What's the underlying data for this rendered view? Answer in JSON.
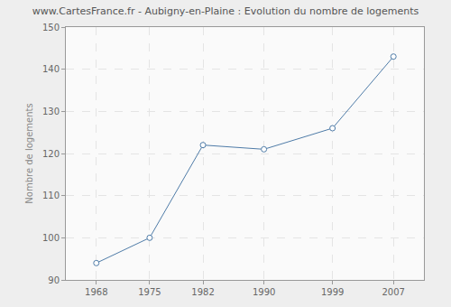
{
  "chart_data": {
    "type": "line",
    "title": "www.CartesFrance.fr - Aubigny-en-Plaine : Evolution du nombre de logements",
    "y_label": "Nombre de logements",
    "x": [
      1968,
      1975,
      1982,
      1990,
      1999,
      2007
    ],
    "values": [
      94,
      100,
      122,
      121,
      126,
      143
    ],
    "color": "#4f7ca8",
    "marker": "circle",
    "line_style": "solid",
    "xlim": [
      1964,
      2011
    ],
    "xticks": [
      1968,
      1975,
      1982,
      1990,
      1999,
      2007
    ],
    "ylim": [
      90,
      150
    ],
    "yticks": [
      90,
      100,
      110,
      120,
      130,
      140,
      150
    ],
    "grid": true
  }
}
